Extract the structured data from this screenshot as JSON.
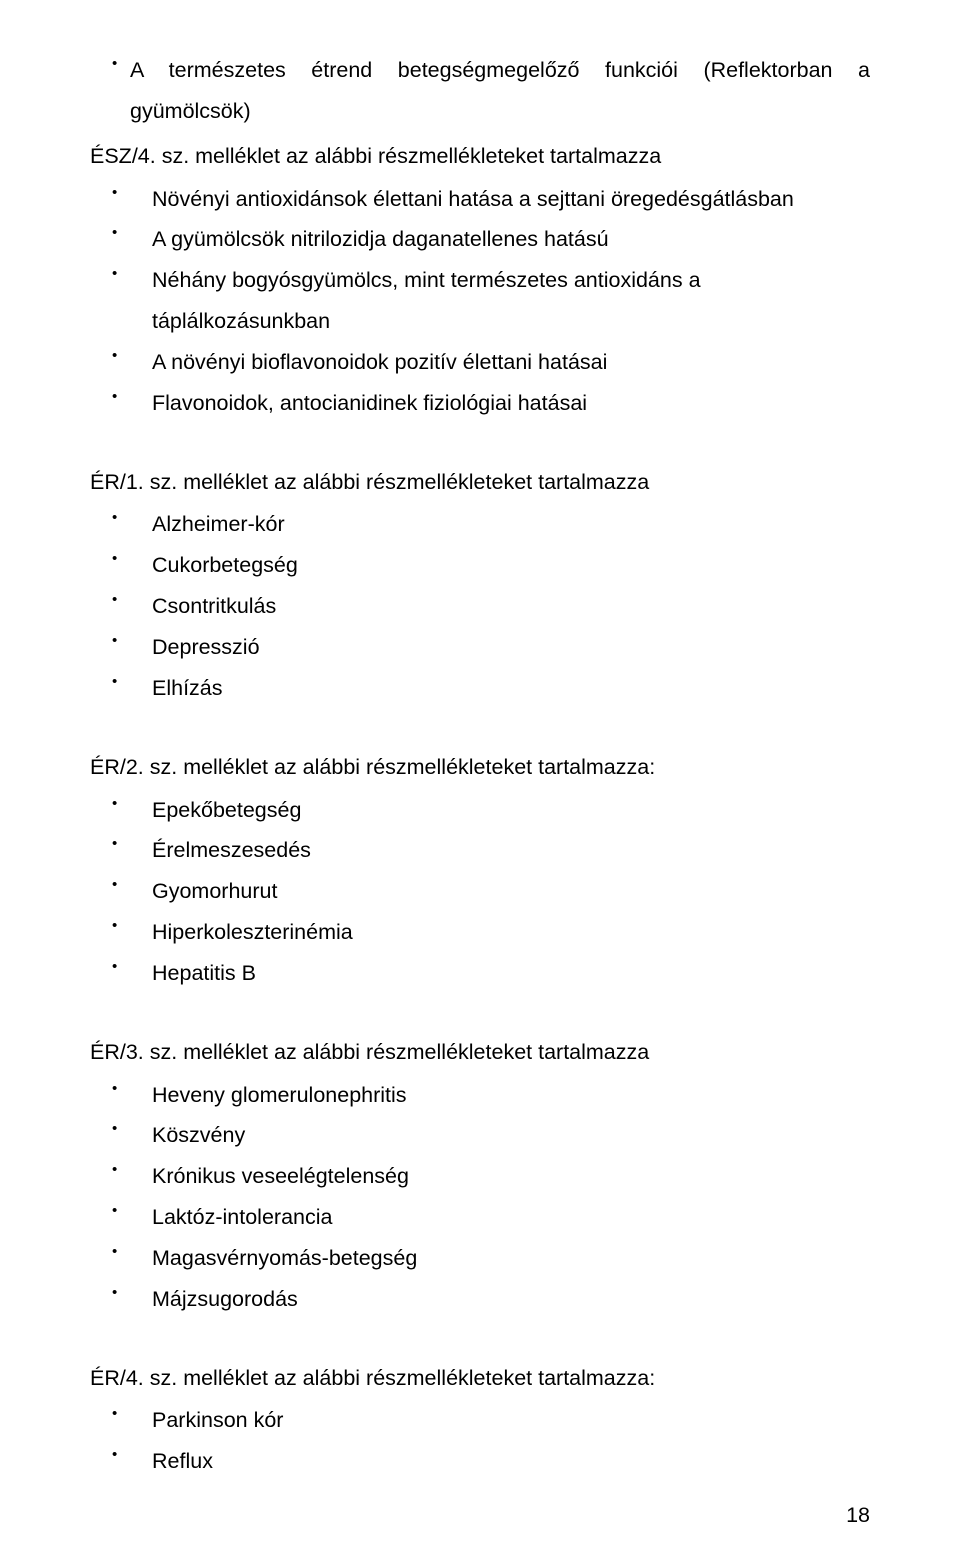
{
  "page_number": "18",
  "typography": {
    "font_family": "Arial",
    "body_fontsize_pt": 16,
    "line_height": 1.9,
    "color": "#000000",
    "background": "#ffffff"
  },
  "sections": [
    {
      "intro_bullet": "A természetes étrend betegségmegelőző funkciói (Reflektorban a gyümölcsök)",
      "intro_justify": true,
      "heading": "ÉSZ/4. sz. melléklet az alábbi részmellékleteket tartalmazza",
      "items": [
        "Növényi antioxidánsok élettani hatása a sejttani öregedésgátlásban",
        "A gyümölcsök nitrilozidja daganatellenes hatású",
        "Néhány bogyósgyümölcs, mint természetes antioxidáns a táplálkozásunkban",
        "A növényi bioflavonoidok pozitív élettani hatásai",
        "Flavonoidok, antocianidinek fiziológiai hatásai"
      ]
    },
    {
      "heading": "ÉR/1. sz. melléklet az alábbi részmellékleteket tartalmazza",
      "items": [
        "Alzheimer-kór",
        "Cukorbetegség",
        "Csontritkulás",
        "Depresszió",
        "Elhízás"
      ]
    },
    {
      "heading": "ÉR/2. sz. melléklet az alábbi részmellékleteket tartalmazza:",
      "items": [
        "Epekőbetegség",
        "Érelmeszesedés",
        "Gyomorhurut",
        "Hiperkoleszterinémia",
        "Hepatitis B"
      ]
    },
    {
      "heading": "ÉR/3. sz. melléklet az alábbi részmellékleteket tartalmazza",
      "items": [
        "Heveny glomerulonephritis",
        "Köszvény",
        "Krónikus veseelégtelenség",
        "Laktóz-intolerancia",
        "Magasvérnyomás-betegség",
        "Májzsugorodás"
      ]
    },
    {
      "heading": "ÉR/4. sz. melléklet az alábbi részmellékleteket tartalmazza:",
      "items": [
        "Parkinson kór",
        "Reflux"
      ]
    }
  ]
}
